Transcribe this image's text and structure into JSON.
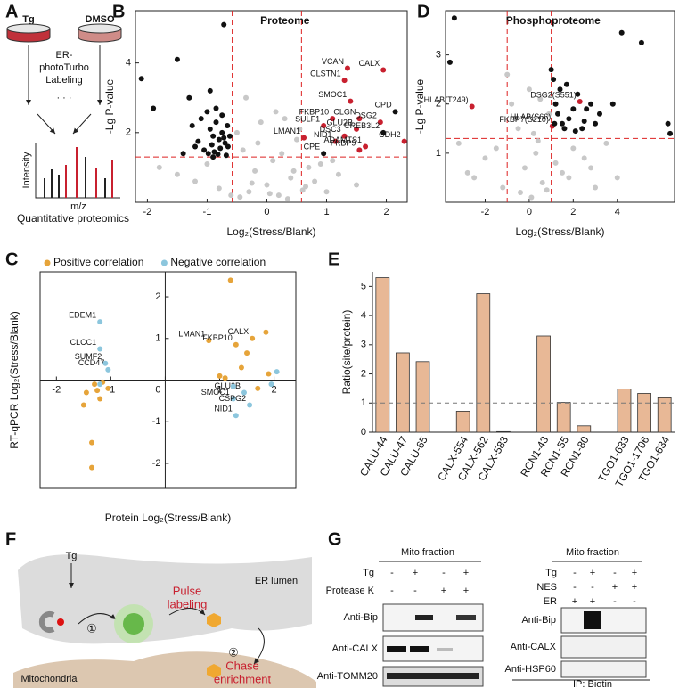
{
  "panel_letters": [
    "A",
    "B",
    "C",
    "D",
    "E",
    "F",
    "G"
  ],
  "panel_a": {
    "labels": [
      "Tg",
      "DMSO"
    ],
    "method": [
      "ER-",
      "photoTurbo",
      "Labeling"
    ],
    "y_axis": "Intensity",
    "x_axis": "m/z",
    "caption": "Quantitative proteomics"
  },
  "chart_data": [
    {
      "type": "scatter",
      "title": "Proteome",
      "x_label": "Log₂(Stress/Blank)",
      "y_label": "-Lg P-value",
      "xlim": [
        -2.2,
        2.35
      ],
      "ylim": [
        0,
        5.5
      ],
      "xticks": [
        -2,
        -1,
        0,
        1,
        2
      ],
      "yticks": [
        2,
        4
      ],
      "vlines": [
        -0.58,
        0.58
      ],
      "hlines": [
        1.3
      ],
      "series": [
        {
          "color": "#c8c8c8",
          "x": [
            -1.8,
            -1.5,
            -1.2,
            -1.0,
            -0.8,
            -0.5,
            -0.4,
            -0.3,
            -0.2,
            -0.1,
            0,
            0.1,
            0.2,
            0.3,
            0.4,
            0.5,
            0.6,
            0.7,
            0.8,
            0.9,
            1.0,
            1.2,
            1.5,
            -0.45,
            -0.35,
            -0.15,
            0.05,
            0.15,
            0.25,
            0.35,
            0.45,
            -0.25,
            0.55,
            0.65,
            -0.6,
            1.1
          ],
          "values": [
            1.0,
            0.8,
            0.6,
            1.1,
            0.4,
            2.0,
            1.5,
            0.3,
            0.9,
            2.3,
            0.5,
            1.2,
            0.2,
            2.4,
            0.7,
            1.8,
            0.35,
            1.0,
            0.6,
            1.1,
            0.3,
            0.8,
            0.5,
            0.15,
            3.0,
            1.7,
            0.25,
            2.6,
            1.4,
            0.1,
            0.9,
            0.55,
            2.1,
            0.45,
            0.2,
            1.2
          ]
        },
        {
          "color": "#111111",
          "x": [
            -2.1,
            -1.5,
            -0.72,
            -1.9,
            -1.3,
            -1.25,
            -1.1,
            -1.0,
            -0.95,
            -0.9,
            -0.85,
            -0.8,
            -0.75,
            -0.7,
            -0.65,
            -1.05,
            -0.98,
            -0.88,
            -0.78,
            -0.68,
            -1.15,
            -0.92,
            -0.82,
            -0.72,
            -0.62,
            -1.2,
            -0.95,
            -0.85,
            -0.75,
            -0.66,
            -1.4,
            -0.9
          ],
          "values": [
            3.55,
            4.1,
            5.1,
            2.7,
            3.0,
            2.2,
            2.4,
            2.6,
            2.1,
            1.9,
            2.3,
            1.8,
            2.0,
            1.7,
            1.6,
            1.5,
            1.4,
            1.45,
            1.55,
            1.35,
            1.75,
            1.65,
            1.38,
            1.85,
            1.9,
            1.6,
            3.2,
            2.7,
            2.5,
            2.2,
            1.4,
            1.3
          ]
        },
        {
          "color": "#c8202f",
          "label_color": "#c8202f",
          "x": [
            1.35,
            1.95,
            1.3,
            1.4,
            1.1,
            1.55,
            0.95,
            1.5,
            1.9,
            1.3,
            0.62,
            1.15,
            1.65,
            1.55,
            2.3
          ],
          "values": [
            3.85,
            3.8,
            3.5,
            2.9,
            2.4,
            2.4,
            2.2,
            2.1,
            2.3,
            1.9,
            1.85,
            1.75,
            1.6,
            1.5,
            1.75
          ],
          "labels": [
            "VCAN",
            "CALX",
            "CLSTN1",
            "SMOC1",
            "FKBP10",
            "CLGN",
            "SULF1",
            "GLU2B",
            "DSG2",
            "DSC3",
            "LMAN1",
            "NID1",
            "ADAMTS1",
            "FKBP9",
            "CDH2"
          ]
        },
        {
          "color": "#111111",
          "label_color": "#111111",
          "x": [
            2.15,
            1.95,
            0.95
          ],
          "values": [
            2.6,
            2.0,
            1.4
          ],
          "labels": [
            "CPD",
            "CREB3L2",
            "CPE"
          ]
        }
      ]
    },
    {
      "type": "scatter",
      "x_label": "Protein Log₂(Stress/Blank)",
      "y_label": "RT-qPCR Log₂(Stress/Blank)",
      "xlim": [
        -2.3,
        2.4
      ],
      "ylim": [
        -2.6,
        2.6
      ],
      "xticks": [
        -2,
        -1,
        0,
        1,
        2
      ],
      "yticks": [
        -2,
        -1,
        1,
        2
      ],
      "series": [
        {
          "name": "Positive correlation",
          "color": "#e6a43a",
          "label_color": "#c8202f",
          "x": [
            -1.15,
            -1.3,
            -1.45,
            -1.2,
            -1.05,
            -1.5,
            -1.35,
            -1.35,
            -1.25,
            1.2,
            0.8,
            1.3,
            1.6,
            1.85,
            1.5,
            1.0,
            1.7,
            1.1,
            1.4,
            1.9
          ],
          "values": [
            -0.05,
            -0.1,
            -0.3,
            -0.45,
            -0.2,
            -0.6,
            -1.5,
            -2.1,
            -0.25,
            2.4,
            0.95,
            0.85,
            1.0,
            1.15,
            0.65,
            0.1,
            -0.2,
            0.05,
            0.3,
            0.15
          ],
          "labels": [
            null,
            null,
            null,
            null,
            null,
            null,
            null,
            null,
            null,
            null,
            "LMAN1",
            "FKBP10",
            "CALX",
            null,
            null,
            null,
            null,
            null,
            null,
            null
          ]
        },
        {
          "name": "Negative correlation",
          "color": "#8cc6dd",
          "label_color": "#c8202f",
          "x": [
            -1.2,
            -1.2,
            -1.1,
            -1.05,
            -1.2,
            1.45,
            1.25,
            1.55,
            1.3,
            1.95,
            1.25,
            2.05
          ],
          "values": [
            1.4,
            0.75,
            0.4,
            0.25,
            -0.1,
            -0.3,
            -0.45,
            -0.6,
            -0.85,
            -0.1,
            -0.15,
            0.2
          ],
          "labels": [
            "EDEM1",
            "CLCC1",
            "SUMF2",
            "CCD47",
            null,
            "GLU2B",
            "SMOC1",
            "CSPG2",
            "NID1",
            null,
            null,
            null
          ]
        }
      ]
    },
    {
      "type": "scatter",
      "title": "Phosphoproteome",
      "x_label": "Log₂(Stress/Blank)",
      "y_label": "-Lg P-value",
      "xlim": [
        -3.8,
        6.6
      ],
      "ylim": [
        0,
        3.9
      ],
      "xticks": [
        -2,
        0,
        2,
        4
      ],
      "yticks": [
        1,
        2,
        3
      ],
      "vlines": [
        -1,
        1
      ],
      "hlines": [
        1.3
      ],
      "series": [
        {
          "color": "#c8c8c8",
          "x": [
            -3.2,
            -2.5,
            -2,
            -1.5,
            -1.2,
            -0.8,
            -0.5,
            -0.2,
            0,
            0.3,
            0.6,
            0.9,
            1.2,
            1.5,
            2,
            2.5,
            3,
            3.5,
            4,
            -1,
            -0.4,
            0.2,
            0.5,
            0.8,
            -0.6,
            0.1,
            1.8,
            2.8,
            -2.8,
            0.4
          ],
          "values": [
            1.2,
            0.5,
            0.9,
            1.1,
            0.3,
            2.0,
            1.5,
            0.7,
            2.3,
            1.0,
            0.4,
            1.8,
            0.8,
            0.6,
            1.1,
            0.9,
            0.3,
            1.2,
            0.5,
            2.6,
            0.2,
            1.4,
            2.1,
            0.25,
            1.7,
            0.1,
            0.5,
            0.7,
            0.6,
            1.25
          ]
        },
        {
          "color": "#111111",
          "x": [
            -3.4,
            -3.6,
            1.0,
            1.2,
            1.3,
            1.5,
            1.6,
            1.8,
            2.0,
            2.2,
            2.4,
            2.6,
            2.8,
            3.0,
            3.2,
            1.4,
            1.7,
            2.1,
            2.5,
            4.2,
            5.1,
            6.3,
            6.4,
            3.8,
            1.1
          ],
          "values": [
            3.75,
            2.85,
            2.7,
            2.0,
            1.8,
            1.6,
            1.5,
            1.7,
            1.9,
            2.2,
            1.5,
            1.9,
            2.0,
            1.6,
            1.8,
            2.3,
            2.4,
            1.45,
            1.65,
            3.45,
            3.25,
            1.6,
            1.4,
            2.0,
            2.5
          ]
        },
        {
          "color": "#c8202f",
          "label_color": "#c8202f",
          "x": [
            -2.6,
            1.05,
            2.3
          ],
          "values": [
            1.95,
            1.55,
            2.05
          ],
          "labels": [
            "HLAB(T249)",
            "FKBP7(S210)",
            "DSG2(S551)"
          ]
        },
        {
          "color": "#111111",
          "label_color": "#c8202f",
          "x": [
            1.15
          ],
          "values": [
            1.6
          ],
          "labels": [
            "HLAB(S66)"
          ]
        }
      ]
    },
    {
      "type": "bar",
      "y_label": "Ratio(site/protein)",
      "ylim": [
        0,
        5.5
      ],
      "yticks": [
        0,
        1,
        2,
        3,
        4,
        5
      ],
      "reference_line": 1,
      "color": "#e8b896",
      "categories": [
        "CALU-44",
        "CALU-47",
        "CALU-65",
        null,
        "CALX-554",
        "CALX-562",
        "CALX-583",
        null,
        "RCN1-43",
        "RCN1-55",
        "RCN1-80",
        null,
        "TGO1-633",
        "TGO1-1706",
        "TGO1-634"
      ],
      "values": [
        5.3,
        2.72,
        2.42,
        null,
        0.72,
        4.75,
        0.02,
        null,
        3.3,
        1.02,
        0.22,
        null,
        1.48,
        1.33,
        1.18
      ]
    }
  ],
  "panel_f": {
    "drug": "Tg",
    "compartment": "ER lumen",
    "pulse": [
      "Pulse",
      "labeling"
    ],
    "steps": [
      "①",
      "②"
    ],
    "chase": [
      "Chase",
      "enrichment"
    ],
    "organelle": "Mitochondria"
  },
  "panel_g": {
    "left": {
      "title": "Mito fraction",
      "rows": [
        {
          "label": "Tg",
          "signs": [
            "-",
            "+",
            "-",
            "+"
          ]
        },
        {
          "label": "Protease K",
          "signs": [
            "-",
            "-",
            "+",
            "+"
          ]
        }
      ],
      "blots": [
        "Anti-Bip",
        "Anti-CALX",
        "Anti-TOMM20"
      ]
    },
    "right": {
      "title": "Mito fraction",
      "rows": [
        {
          "label": "Tg",
          "signs": [
            "-",
            "+",
            "-",
            "+"
          ]
        },
        {
          "label": "NES",
          "signs": [
            "-",
            "-",
            "+",
            "+"
          ]
        },
        {
          "label": "ER",
          "signs": [
            "+",
            "+",
            "-",
            "-"
          ]
        }
      ],
      "blots": [
        "Anti-Bip",
        "Anti-CALX",
        "Anti-HSP60"
      ],
      "footer": "IP: Biotin"
    }
  }
}
